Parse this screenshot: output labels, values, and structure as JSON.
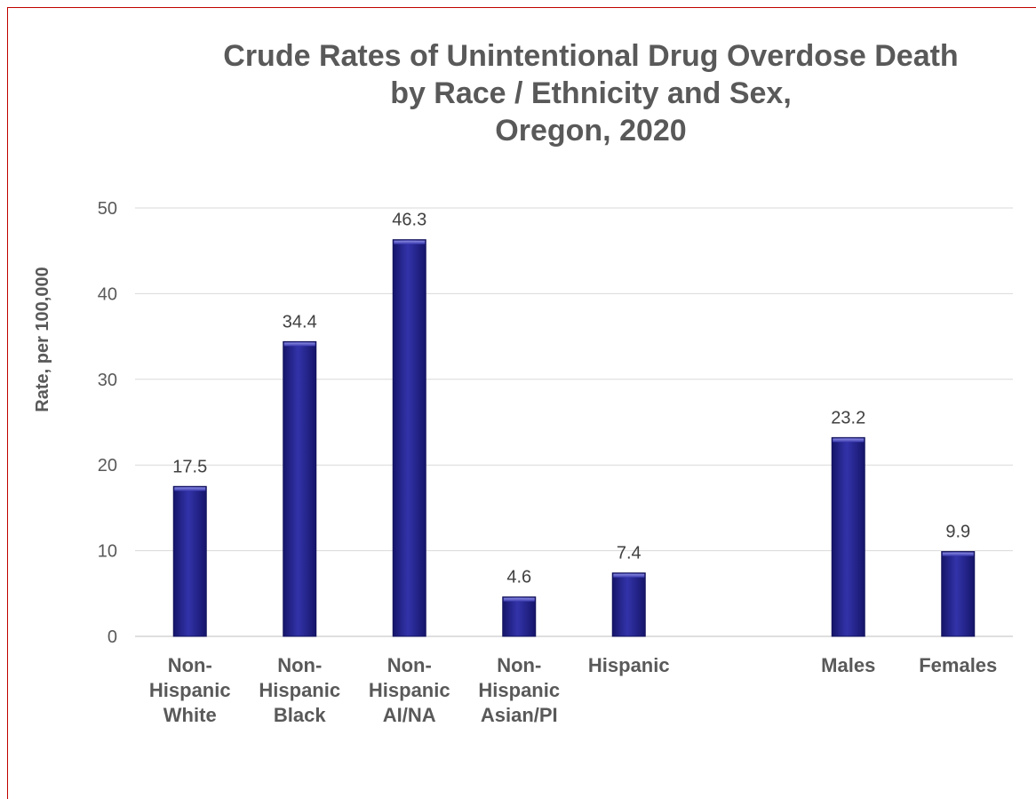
{
  "chart_data": {
    "type": "bar",
    "title_lines": [
      "Crude Rates of Unintentional Drug Overdose Death",
      "by Race / Ethnicity and Sex,",
      "Oregon, 2020"
    ],
    "ylabel": "Rate, per 100,000",
    "xlabel": "",
    "ylim": [
      0,
      50
    ],
    "yticks": [
      "0",
      "10",
      "20",
      "30",
      "40",
      "50"
    ],
    "grid": true,
    "categories": [
      [
        "Non-",
        "Hispanic",
        "White"
      ],
      [
        "Non-",
        "Hispanic",
        "Black"
      ],
      [
        "Non-",
        "Hispanic",
        "AI/NA"
      ],
      [
        "Non-",
        "Hispanic",
        "Asian/PI"
      ],
      [
        "Hispanic"
      ],
      [],
      [
        "Males"
      ],
      [
        "Females"
      ]
    ],
    "values": [
      17.5,
      34.4,
      46.3,
      4.6,
      7.4,
      null,
      23.2,
      9.9
    ],
    "data_labels": [
      "17.5",
      "34.4",
      "46.3",
      "4.6",
      "7.4",
      "",
      "23.2",
      "9.9"
    ],
    "bar_color": "#2b2b99"
  }
}
